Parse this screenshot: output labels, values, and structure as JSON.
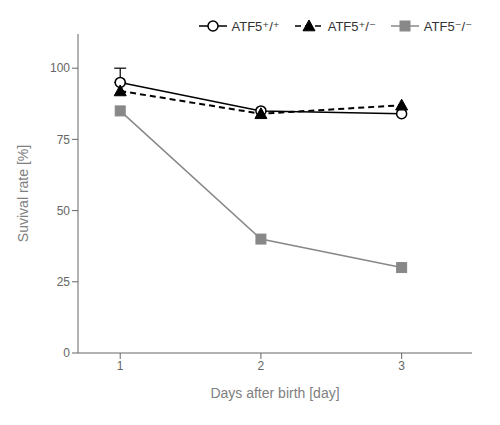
{
  "chart_data": {
    "type": "line",
    "xlabel": "Days after birth [day]",
    "ylabel": "Suvival rate [%]",
    "x": [
      1,
      2,
      3
    ],
    "xlim": [
      0.7,
      3.5
    ],
    "xticks": [
      1,
      2,
      3
    ],
    "ylim": [
      0,
      112
    ],
    "yticks": [
      0,
      25,
      50,
      75,
      100
    ],
    "grid": false,
    "legend": "upper right",
    "series": [
      {
        "name": "ATF5⁺/⁺",
        "color": "#000000",
        "values": [
          95,
          85,
          84
        ],
        "marker": "open_circle",
        "line_style": "solid",
        "error_bars": [
          [
            0,
            5
          ],
          null,
          null
        ]
      },
      {
        "name": "ATF5⁺/⁻",
        "color": "#000000",
        "values": [
          92,
          84,
          87
        ],
        "marker": "triangle",
        "line_style": "dashed"
      },
      {
        "name": "ATF5⁻/⁻",
        "color": "#888888",
        "values": [
          85,
          40,
          30
        ],
        "marker": "square",
        "line_style": "solid"
      }
    ]
  }
}
